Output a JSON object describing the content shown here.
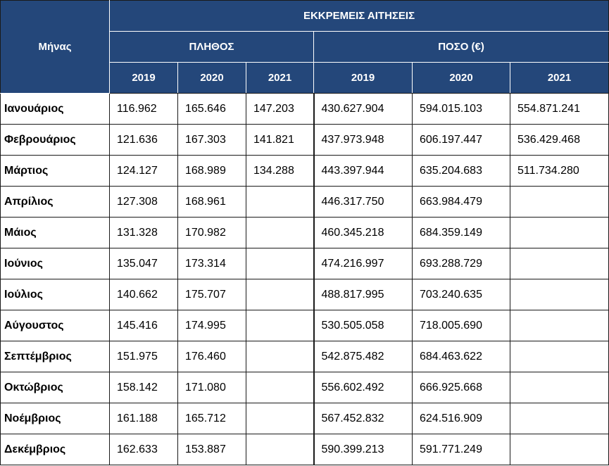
{
  "header": {
    "month_label": "Μήνας",
    "group_title": "ΕΚΚΡΕΜΕΙΣ ΑΙΤΗΣΕΙΣ",
    "count_label": "ΠΛΗΘΟΣ",
    "amount_label": "ΠΟΣΟ (€)",
    "years": [
      "2019",
      "2020",
      "2021"
    ]
  },
  "rows": [
    {
      "month": "Ιανουάριος",
      "count": [
        "116.962",
        "165.646",
        "147.203"
      ],
      "amount": [
        "430.627.904",
        "594.015.103",
        "554.871.241"
      ]
    },
    {
      "month": "Φεβρουάριος",
      "count": [
        "121.636",
        "167.303",
        "141.821"
      ],
      "amount": [
        "437.973.948",
        "606.197.447",
        "536.429.468"
      ]
    },
    {
      "month": "Μάρτιος",
      "count": [
        "124.127",
        "168.989",
        "134.288"
      ],
      "amount": [
        "443.397.944",
        "635.204.683",
        "511.734.280"
      ]
    },
    {
      "month": "Απρίλιος",
      "count": [
        "127.308",
        "168.961",
        ""
      ],
      "amount": [
        "446.317.750",
        "663.984.479",
        ""
      ]
    },
    {
      "month": "Μάιος",
      "count": [
        "131.328",
        "170.982",
        ""
      ],
      "amount": [
        "460.345.218",
        "684.359.149",
        ""
      ]
    },
    {
      "month": "Ιούνιος",
      "count": [
        "135.047",
        "173.314",
        ""
      ],
      "amount": [
        "474.216.997",
        "693.288.729",
        ""
      ]
    },
    {
      "month": "Ιούλιος",
      "count": [
        "140.662",
        "175.707",
        ""
      ],
      "amount": [
        "488.817.995",
        "703.240.635",
        ""
      ]
    },
    {
      "month": "Αύγουστος",
      "count": [
        "145.416",
        "174.995",
        ""
      ],
      "amount": [
        "530.505.058",
        "718.005.690",
        ""
      ]
    },
    {
      "month": "Σεπτέμβριος",
      "count": [
        "151.975",
        "176.460",
        ""
      ],
      "amount": [
        "542.875.482",
        "684.463.622",
        ""
      ]
    },
    {
      "month": "Οκτώβριος",
      "count": [
        "158.142",
        "171.080",
        ""
      ],
      "amount": [
        "556.602.492",
        "666.925.668",
        ""
      ]
    },
    {
      "month": "Νοέμβριος",
      "count": [
        "161.188",
        "165.712",
        ""
      ],
      "amount": [
        "567.452.832",
        "624.516.909",
        ""
      ]
    },
    {
      "month": "Δεκέμβριος",
      "count": [
        "162.633",
        "153.887",
        ""
      ],
      "amount": [
        "590.399.213",
        "591.771.249",
        ""
      ]
    }
  ]
}
